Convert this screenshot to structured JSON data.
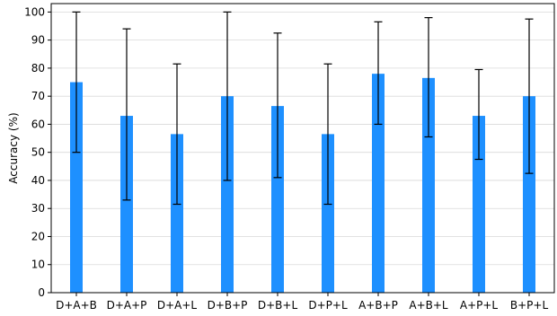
{
  "chart_data": {
    "type": "bar",
    "title": "",
    "xlabel": "",
    "ylabel": "Accuracy (%)",
    "ylim": [
      0,
      103
    ],
    "yticks": [
      0,
      10,
      20,
      30,
      40,
      50,
      60,
      70,
      80,
      90,
      100
    ],
    "grid": "horizontal",
    "legend": "none",
    "bar_color": "#1e90ff",
    "error_bar_color": "#000000",
    "categories": [
      "D+A+B",
      "D+A+P",
      "D+A+L",
      "D+B+P",
      "D+B+L",
      "D+P+L",
      "A+B+P",
      "A+B+L",
      "A+P+L",
      "B+P+L"
    ],
    "values": [
      75,
      63,
      56.5,
      70,
      66.5,
      56.5,
      78,
      76.5,
      63,
      70
    ],
    "error_low": [
      50,
      33,
      31.5,
      40,
      41,
      31.5,
      60,
      55.5,
      47.5,
      42.5
    ],
    "error_high": [
      100,
      94,
      81.5,
      100,
      92.5,
      81.5,
      96.5,
      98,
      79.5,
      97.5
    ]
  }
}
